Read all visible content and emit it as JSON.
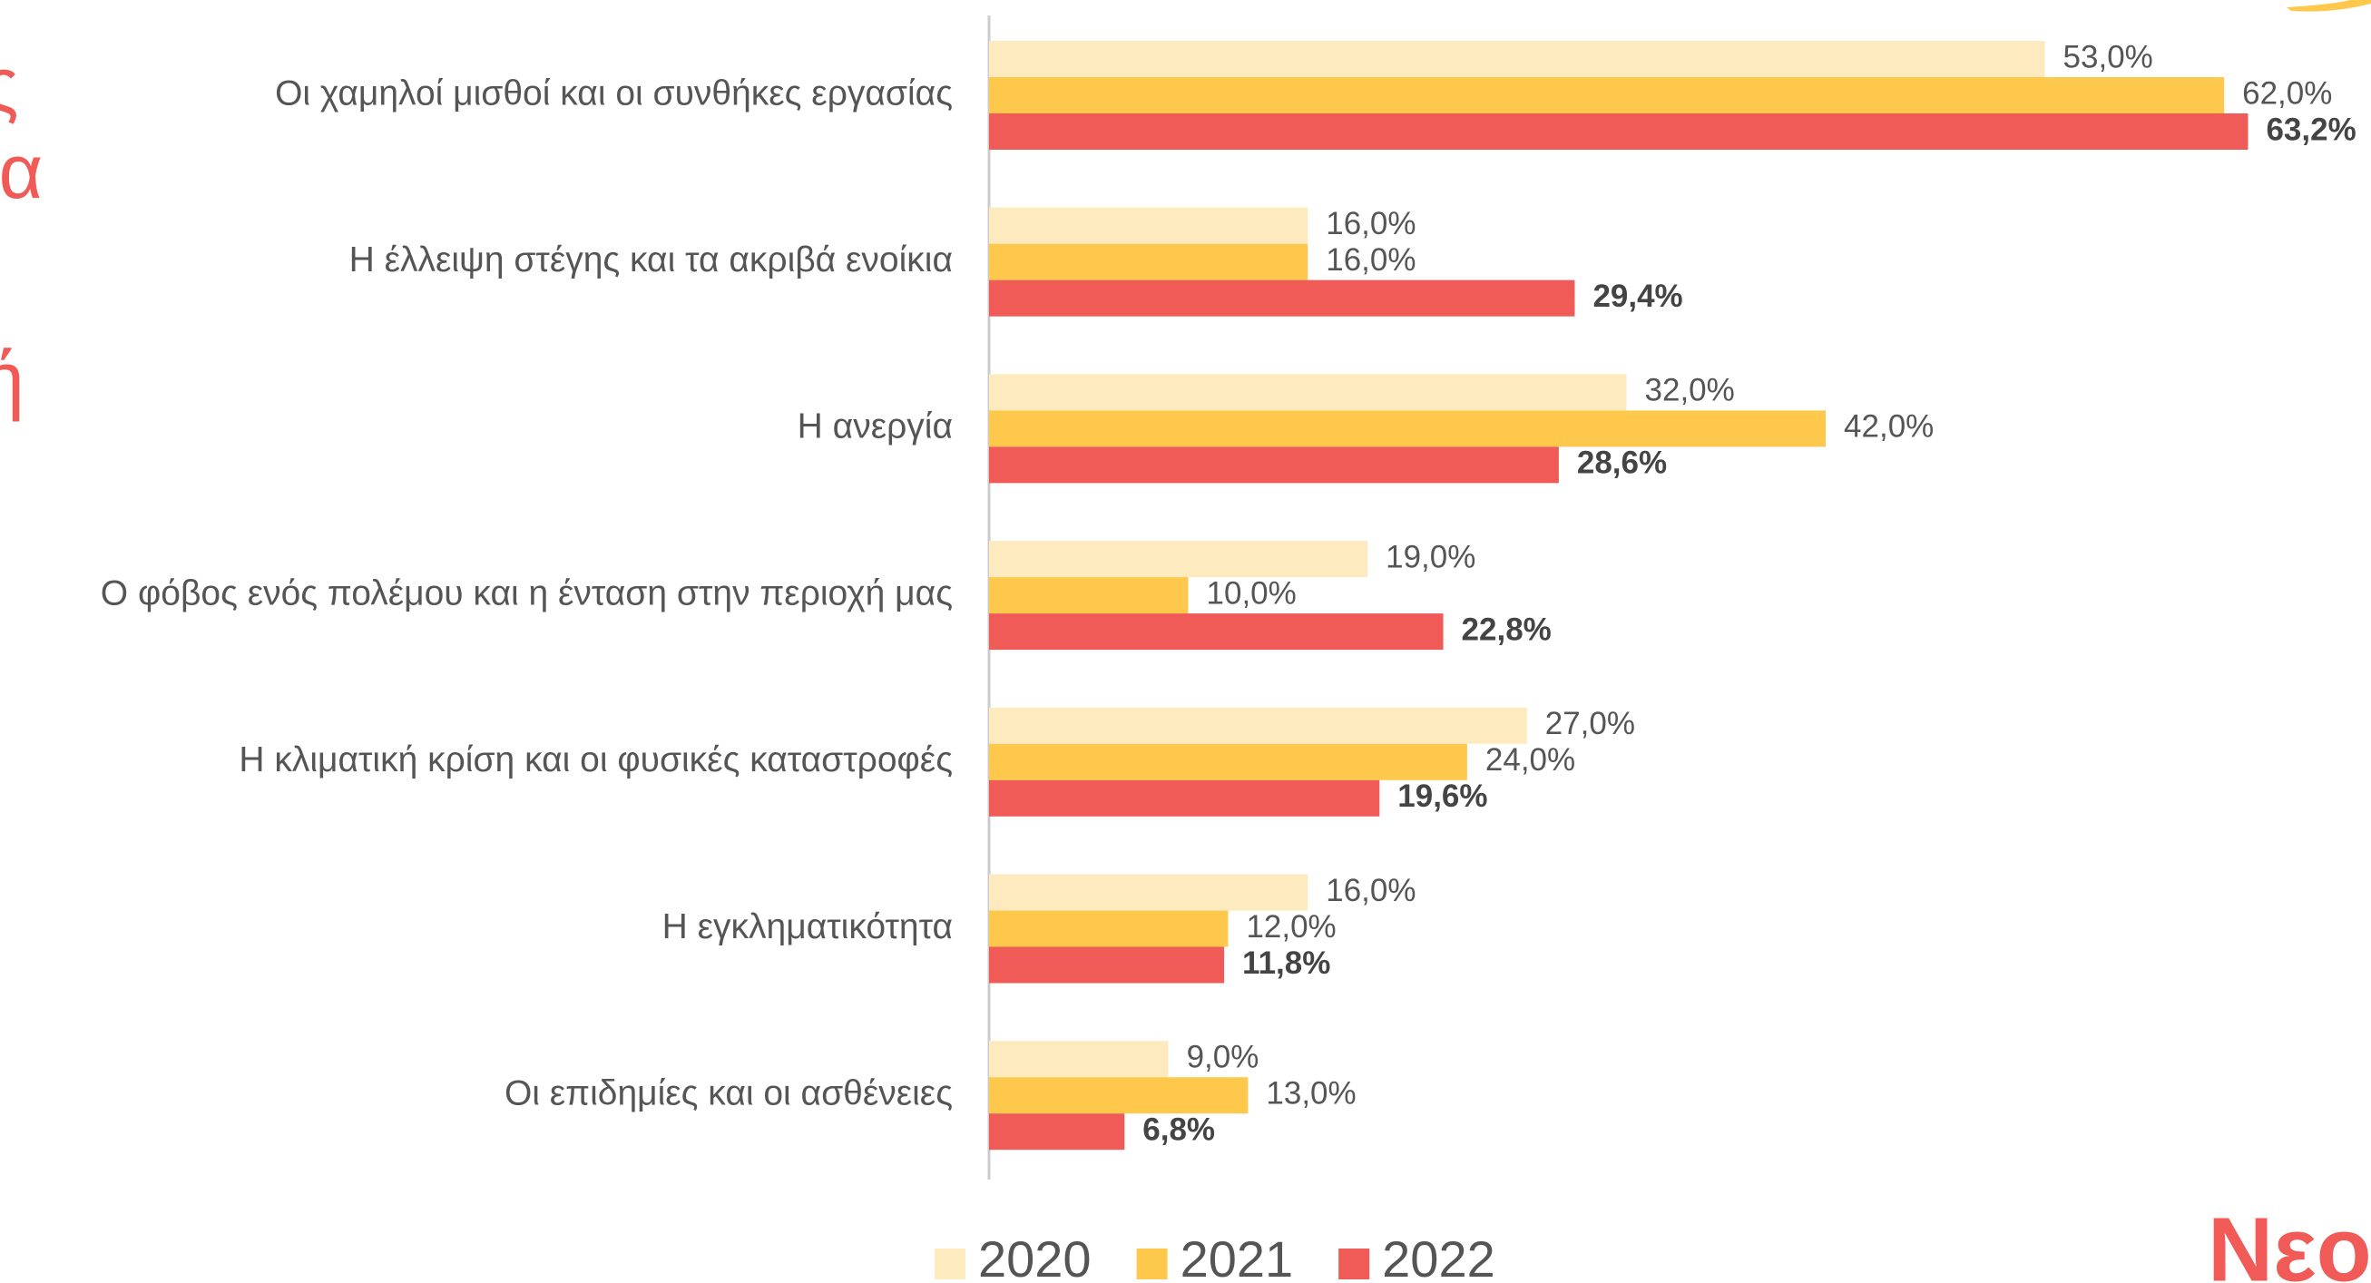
{
  "chart_data": {
    "type": "barh",
    "categories": [
      "Οι χαμηλοί μισθοί και οι συνθήκες εργασίας",
      "Η έλλειψη στέγης και τα ακριβά ενοίκια",
      "Η ανεργία",
      "Ο φόβος ενός πολέμου και η ένταση στην περιοχή μας",
      "Η κλιματική κρίση και οι φυσικές καταστροφές",
      "Η εγκληματικότητα",
      "Οι επιδημίες και οι ασθένειες"
    ],
    "series": [
      {
        "name": "2020",
        "color": "#fdebbf",
        "values": [
          53,
          16,
          32,
          19,
          27,
          16,
          9
        ],
        "value_labels": [
          "53,0%",
          "16,0%",
          "32,0%",
          "19,0%",
          "27,0%",
          "16,0%",
          "9,0%"
        ]
      },
      {
        "name": "2021",
        "color": "#fec84d",
        "values": [
          62,
          16,
          42,
          10,
          24,
          12,
          13
        ],
        "value_labels": [
          "62,0%",
          "16,0%",
          "42,0%",
          "10,0%",
          "24,0%",
          "12,0%",
          "13,0%"
        ]
      },
      {
        "name": "2022",
        "color": "#f05a57",
        "values": [
          63.2,
          29.4,
          28.6,
          22.8,
          19.6,
          11.8,
          6.8
        ],
        "value_labels": [
          "63,2%",
          "29,4%",
          "28,6%",
          "22,8%",
          "19,6%",
          "11,8%",
          "6,8%"
        ]
      }
    ],
    "xlim": [
      0,
      65
    ],
    "legend": "bottom"
  },
  "side_text": [
    "ς",
    "ια",
    "ή"
  ],
  "brand": "Νεο"
}
